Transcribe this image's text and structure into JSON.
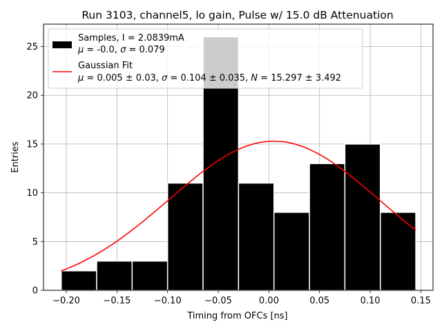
{
  "chart_data": {
    "type": "bar",
    "title": "Run 3103, channel5, lo gain, Pulse w/ 15.0 dB Attenuation",
    "xlabel": "Timing from OFCs [ns]",
    "ylabel": "Entries",
    "xlim": [
      -0.2225,
      0.162
    ],
    "ylim": [
      0,
      27.3
    ],
    "xticks": [
      -0.2,
      -0.15,
      -0.1,
      -0.05,
      0.0,
      0.05,
      0.1,
      0.15
    ],
    "xtick_labels": [
      "−0.20",
      "−0.15",
      "−0.10",
      "−0.05",
      "0.00",
      "0.05",
      "0.10",
      "0.15"
    ],
    "yticks": [
      0,
      5,
      10,
      15,
      20,
      25
    ],
    "ytick_labels": [
      "0",
      "5",
      "10",
      "15",
      "20",
      "25"
    ],
    "grid": true,
    "legend_position": "top-left",
    "histogram": {
      "bin_edges": [
        -0.205,
        -0.17,
        -0.135,
        -0.1,
        -0.065,
        -0.03,
        0.005,
        0.04,
        0.075,
        0.11,
        0.145
      ],
      "counts": [
        2,
        3,
        3,
        11,
        26,
        11,
        8,
        13,
        15,
        8
      ],
      "color": "#000000",
      "edgecolor": "#ffffff",
      "legend_label": "Samples, I = 2.0839mA",
      "legend_stats": "μ = -0.0, σ = 0.079"
    },
    "fit": {
      "type": "gaussian",
      "mu": 0.005,
      "sigma": 0.104,
      "N": 15.297,
      "x_range": [
        -0.205,
        0.145
      ],
      "color": "#ff0000",
      "legend_label": "Gaussian Fit",
      "legend_stats": "μ = 0.005 ± 0.03, σ = 0.104 ± 0.035, N = 15.297 ± 3.492"
    }
  }
}
